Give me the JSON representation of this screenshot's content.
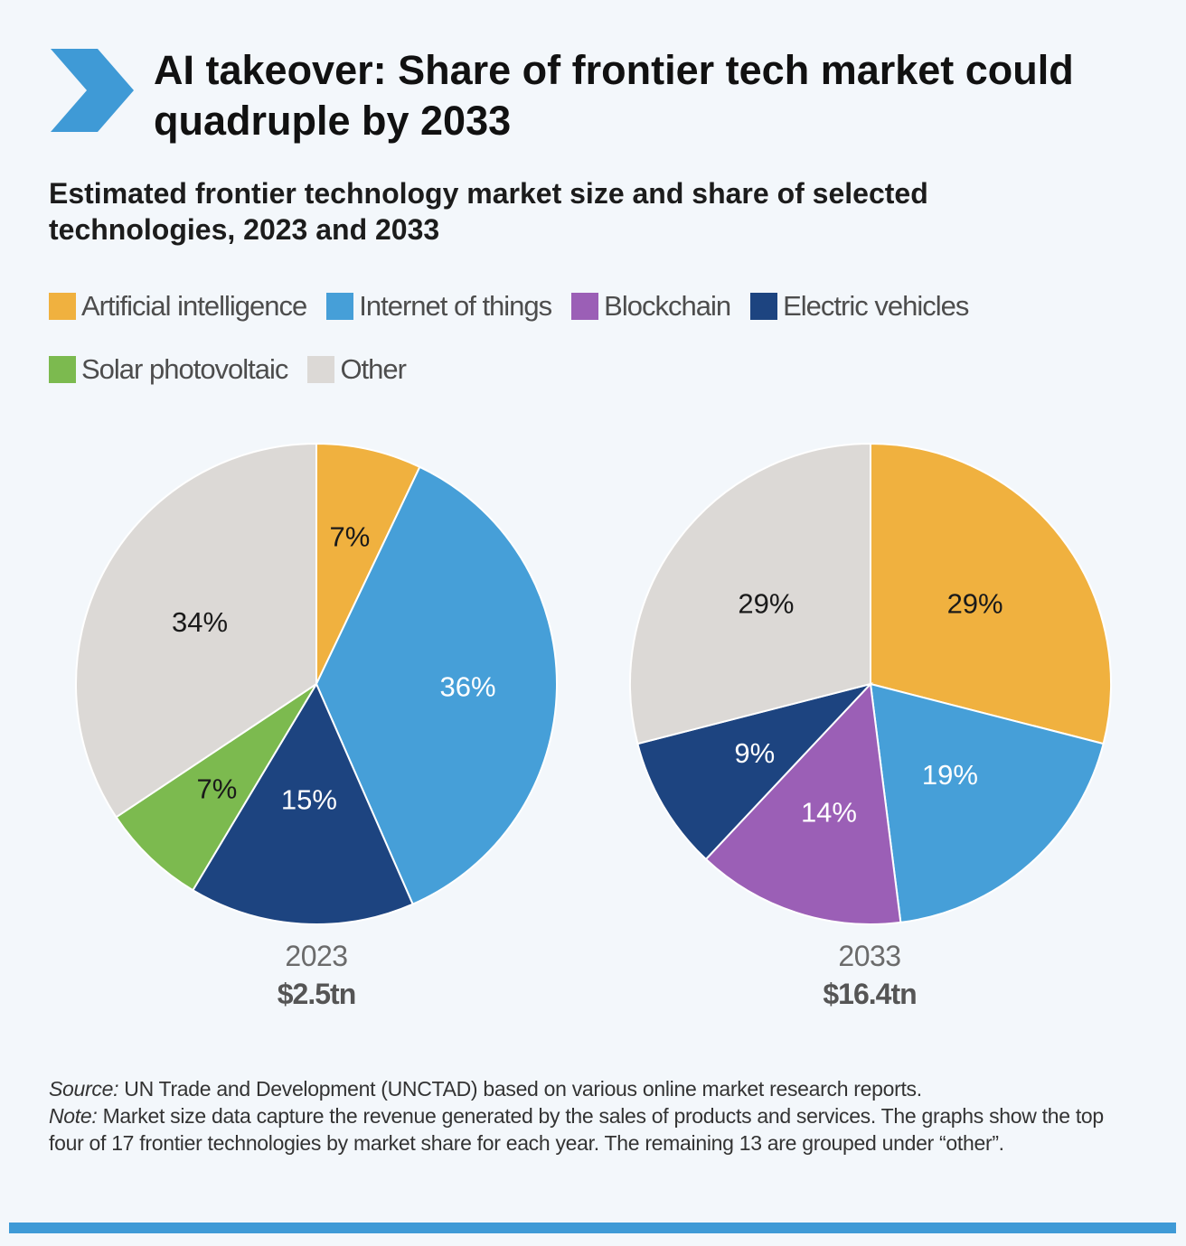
{
  "title": "AI takeover: Share of frontier tech market could quadruple by 2033",
  "subtitle": "Estimated frontier technology market size and share of selected technologies, 2023 and 2033",
  "colors": {
    "accent": "#3f9ad6",
    "Artificial intelligence": "#f0b13f",
    "Internet of things": "#469fd8",
    "Blockchain": "#9b5fb6",
    "Electric vehicles": "#1d4480",
    "Solar photovoltaic": "#7cba4f",
    "Other": "#dcd9d6"
  },
  "legend": [
    "Artificial intelligence",
    "Internet of things",
    "Blockchain",
    "Electric vehicles",
    "Solar photovoltaic",
    "Other"
  ],
  "chart_data": [
    {
      "type": "pie",
      "year": "2023",
      "total": "$2.5tn",
      "slices": [
        {
          "name": "Artificial intelligence",
          "value": 7,
          "label": "7%"
        },
        {
          "name": "Internet of things",
          "value": 36,
          "label": "36%"
        },
        {
          "name": "Electric vehicles",
          "value": 15,
          "label": "15%"
        },
        {
          "name": "Solar photovoltaic",
          "value": 7,
          "label": "7%"
        },
        {
          "name": "Other",
          "value": 34,
          "label": "34%"
        }
      ]
    },
    {
      "type": "pie",
      "year": "2033",
      "total": "$16.4tn",
      "slices": [
        {
          "name": "Artificial intelligence",
          "value": 29,
          "label": "29%"
        },
        {
          "name": "Internet of things",
          "value": 19,
          "label": "19%"
        },
        {
          "name": "Blockchain",
          "value": 14,
          "label": "14%"
        },
        {
          "name": "Electric vehicles",
          "value": 9,
          "label": "9%"
        },
        {
          "name": "Other",
          "value": 29,
          "label": "29%"
        }
      ]
    }
  ],
  "footnote": {
    "source_prefix": "Source:",
    "source_text": " UN Trade and Development (UNCTAD) based on various online market research reports.",
    "note_prefix": "Note:",
    "note_text": " Market size data capture the revenue generated by the sales of products and services. The graphs show the top four of 17 frontier technologies by market share for each year. The remaining 13 are grouped under “other”."
  }
}
